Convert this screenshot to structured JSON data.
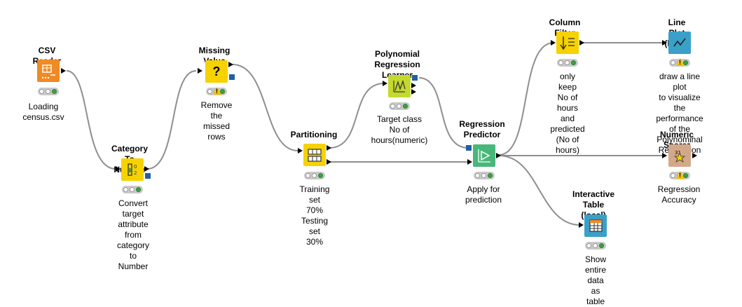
{
  "colors": {
    "reader": "#f08a24",
    "manipulator": "#f5d200",
    "learner": "#c3d92e",
    "predictor": "#48b77a",
    "view": "#3aa0c8",
    "scorer": "#d3a88a",
    "connection": "#8e8e8e",
    "port_blue": "#1f5fa8"
  },
  "nodes": {
    "csv_reader": {
      "title": "CSV Reader",
      "desc": "Loading census.csv",
      "icon": "csv-reader-icon"
    },
    "category_to_number": {
      "title": "Category To Number",
      "desc": "Convert target attribute from\ncategory to Number",
      "icon": "category-to-number-icon"
    },
    "missing_value": {
      "title": "Missing Value",
      "desc": "Remove the missed\nrows",
      "icon_glyph": "?",
      "icon": "question-icon"
    },
    "partitioning": {
      "title": "Partitioning",
      "desc": "Training set 70%\nTesting set 30%",
      "icon": "partitioning-icon"
    },
    "poly_learner": {
      "title": "Polynomial\nRegression Learner",
      "desc": "Target class\nNo of hours(numeric)",
      "icon": "polynomial-learner-icon"
    },
    "regression_predictor": {
      "title": "Regression\nPredictor",
      "desc": "Apply for prediction",
      "icon": "predictor-icon"
    },
    "column_filter": {
      "title": "Column Filter",
      "desc": "only keep\nNo of hours and\npredicted (No of hours)",
      "icon": "column-filter-icon"
    },
    "line_plot": {
      "title": "Line Plot (local)",
      "desc": "draw a line plot\nto visualize the performance\nof the Polynominal Regression",
      "icon": "line-plot-icon"
    },
    "numeric_scorer": {
      "title": "Numeric Scorer",
      "desc": "Regression Accuracy",
      "icon_glyph": "31",
      "icon": "scorer-icon"
    },
    "interactive_table": {
      "title": "Interactive\nTable (local)",
      "desc": "Show entire data as\ntable",
      "icon": "table-icon"
    }
  }
}
